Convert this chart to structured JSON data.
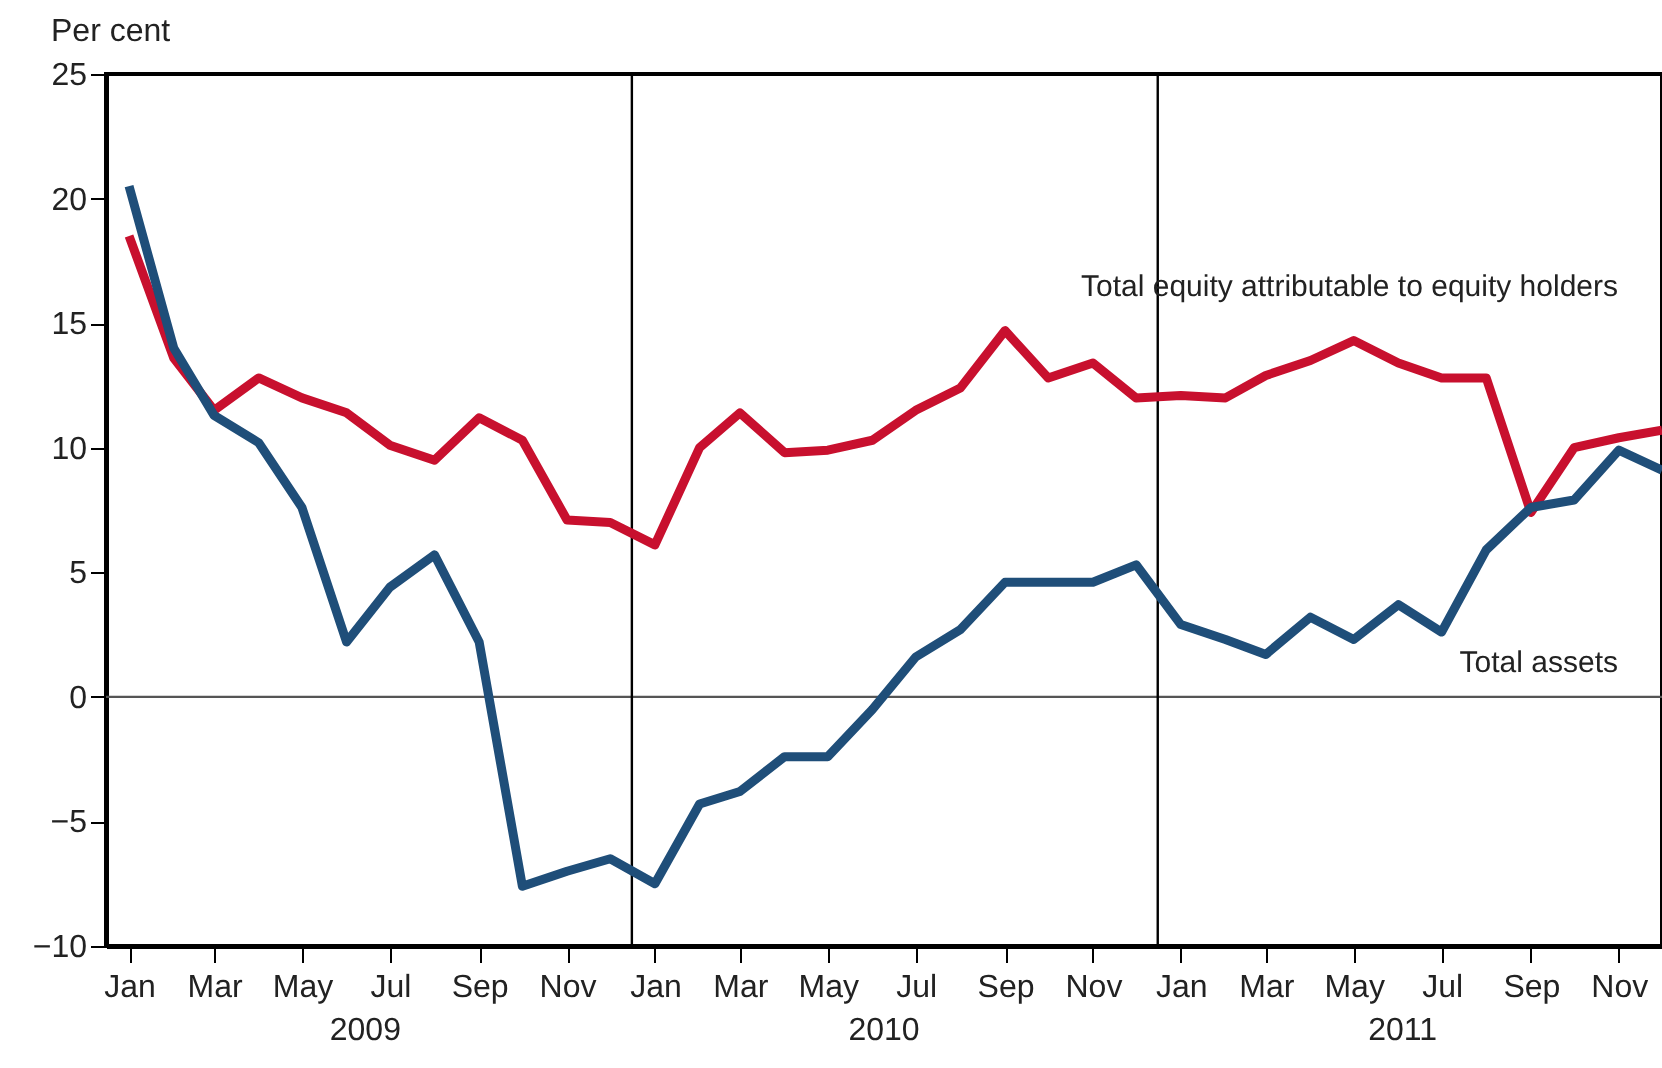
{
  "chart_data": {
    "type": "line",
    "ylabel": "Per cent",
    "x": [
      "2009-01",
      "2009-02",
      "2009-03",
      "2009-04",
      "2009-05",
      "2009-06",
      "2009-07",
      "2009-08",
      "2009-09",
      "2009-10",
      "2009-11",
      "2009-12",
      "2010-01",
      "2010-02",
      "2010-03",
      "2010-04",
      "2010-05",
      "2010-06",
      "2010-07",
      "2010-08",
      "2010-09",
      "2010-10",
      "2010-11",
      "2010-12",
      "2011-01",
      "2011-02",
      "2011-03",
      "2011-04",
      "2011-05",
      "2011-06",
      "2011-07",
      "2011-08",
      "2011-09",
      "2011-10",
      "2011-11",
      "2011-12"
    ],
    "series": [
      {
        "name": "Total equity attributable to equity holders",
        "color": "#c8102e",
        "values": [
          18.5,
          13.6,
          11.5,
          12.8,
          12.0,
          11.4,
          10.1,
          9.5,
          11.2,
          10.3,
          7.1,
          7.0,
          6.1,
          10.0,
          11.4,
          9.8,
          9.9,
          10.3,
          11.5,
          12.4,
          14.7,
          12.8,
          13.4,
          12.0,
          12.1,
          12.0,
          12.9,
          13.5,
          14.3,
          13.4,
          12.8,
          12.8,
          7.4,
          10.0,
          10.4,
          10.7
        ]
      },
      {
        "name": "Total assets",
        "color": "#1f4e79",
        "values": [
          20.5,
          14.0,
          11.3,
          10.2,
          7.6,
          2.2,
          4.4,
          5.7,
          2.2,
          -7.6,
          -7.0,
          -6.5,
          -7.5,
          -4.3,
          -3.8,
          -2.4,
          -2.4,
          -0.5,
          1.6,
          2.7,
          4.6,
          4.6,
          4.6,
          5.3,
          2.9,
          2.3,
          1.7,
          3.2,
          2.3,
          3.7,
          2.6,
          5.9,
          7.6,
          7.9,
          9.9,
          9.1
        ]
      }
    ],
    "xlim": [
      "2008-12-16",
      "2011-12-01"
    ],
    "xticks": [
      {
        "value": "2009-01",
        "label": "Jan"
      },
      {
        "value": "2009-03",
        "label": "Mar"
      },
      {
        "value": "2009-05",
        "label": "May"
      },
      {
        "value": "2009-07",
        "label": "Jul"
      },
      {
        "value": "2009-09",
        "label": "Sep"
      },
      {
        "value": "2009-11",
        "label": "Nov"
      },
      {
        "value": "2010-01",
        "label": "Jan"
      },
      {
        "value": "2010-03",
        "label": "Mar"
      },
      {
        "value": "2010-05",
        "label": "May"
      },
      {
        "value": "2010-07",
        "label": "Jul"
      },
      {
        "value": "2010-09",
        "label": "Sep"
      },
      {
        "value": "2010-11",
        "label": "Nov"
      },
      {
        "value": "2011-01",
        "label": "Jan"
      },
      {
        "value": "2011-03",
        "label": "Mar"
      },
      {
        "value": "2011-05",
        "label": "May"
      },
      {
        "value": "2011-07",
        "label": "Jul"
      },
      {
        "value": "2011-09",
        "label": "Sep"
      },
      {
        "value": "2011-11",
        "label": "Nov"
      }
    ],
    "ylim": [
      -10,
      25
    ],
    "yticks": [
      -10,
      -5,
      0,
      5,
      10,
      15,
      20,
      25
    ],
    "ref_lines": [
      {
        "axis": "y",
        "value": 0,
        "color": "#555555"
      },
      {
        "axis": "x",
        "value": "2009-12-16",
        "color": "#000000"
      },
      {
        "axis": "x",
        "value": "2010-12-16",
        "color": "#000000"
      }
    ],
    "annotations": [
      "2009",
      "2010",
      "2011"
    ],
    "marker": "none",
    "line_style": "solid"
  }
}
